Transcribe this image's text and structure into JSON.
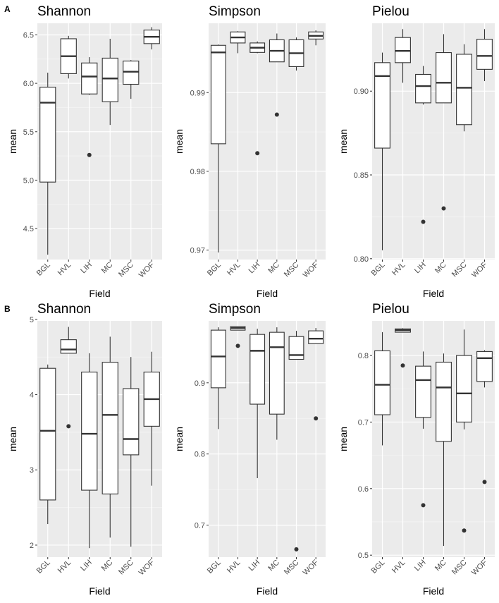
{
  "figure": {
    "panel_labels": [
      "A",
      "B"
    ]
  },
  "chart_data": [
    {
      "type": "boxplot",
      "row": "A",
      "title": "Shannon",
      "xlabel": "Field",
      "ylabel": "mean",
      "categories": [
        "BGL",
        "HVL",
        "LIH",
        "MC",
        "MSC",
        "WOF"
      ],
      "ylim": [
        4.18,
        6.62
      ],
      "yticks": [
        4.5,
        5.0,
        5.5,
        6.0,
        6.5
      ],
      "ytick_labels": [
        "4.5",
        "5.0",
        "5.5",
        "6.0",
        "6.5"
      ],
      "boxes": [
        {
          "min": 4.23,
          "q1": 4.98,
          "median": 5.8,
          "q3": 5.96,
          "max": 6.11,
          "outliers": []
        },
        {
          "min": 6.05,
          "q1": 6.1,
          "median": 6.28,
          "q3": 6.46,
          "max": 6.49,
          "outliers": []
        },
        {
          "min": 5.88,
          "q1": 5.89,
          "median": 6.07,
          "q3": 6.21,
          "max": 6.27,
          "outliers": [
            5.26
          ]
        },
        {
          "min": 5.57,
          "q1": 5.81,
          "median": 6.05,
          "q3": 6.26,
          "max": 6.46,
          "outliers": []
        },
        {
          "min": 5.84,
          "q1": 5.99,
          "median": 6.12,
          "q3": 6.23,
          "max": 6.24,
          "outliers": []
        },
        {
          "min": 6.35,
          "q1": 6.41,
          "median": 6.48,
          "q3": 6.55,
          "max": 6.58,
          "outliers": []
        }
      ]
    },
    {
      "type": "boxplot",
      "row": "A",
      "title": "Simpson",
      "xlabel": "Field",
      "ylabel": "mean",
      "categories": [
        "BGL",
        "HVL",
        "LIH",
        "MC",
        "MSC",
        "WOF"
      ],
      "ylim": [
        0.9688,
        0.9988
      ],
      "yticks": [
        0.97,
        0.98,
        0.99
      ],
      "ytick_labels": [
        "0.97",
        "0.98",
        "0.99"
      ],
      "boxes": [
        {
          "min": 0.9697,
          "q1": 0.9835,
          "median": 0.9951,
          "q3": 0.996,
          "max": 0.9961,
          "outliers": []
        },
        {
          "min": 0.995,
          "q1": 0.9963,
          "median": 0.997,
          "q3": 0.9977,
          "max": 0.9978,
          "outliers": []
        },
        {
          "min": 0.995,
          "q1": 0.9951,
          "median": 0.9957,
          "q3": 0.9963,
          "max": 0.9965,
          "outliers": [
            0.9823
          ]
        },
        {
          "min": 0.9939,
          "q1": 0.9939,
          "median": 0.9953,
          "q3": 0.9967,
          "max": 0.9975,
          "outliers": [
            0.9872
          ]
        },
        {
          "min": 0.9928,
          "q1": 0.9933,
          "median": 0.995,
          "q3": 0.9967,
          "max": 0.997,
          "outliers": []
        },
        {
          "min": 0.996,
          "q1": 0.9968,
          "median": 0.9972,
          "q3": 0.9977,
          "max": 0.9979,
          "outliers": []
        }
      ]
    },
    {
      "type": "boxplot",
      "row": "A",
      "title": "Pielou",
      "xlabel": "Field",
      "ylabel": "mean",
      "categories": [
        "BGL",
        "HVL",
        "LIH",
        "MC",
        "MSC",
        "WOF"
      ],
      "ylim": [
        0.7995,
        0.9405
      ],
      "yticks": [
        0.8,
        0.85,
        0.9
      ],
      "ytick_labels": [
        "0.80",
        "0.85",
        "0.90"
      ],
      "boxes": [
        {
          "min": 0.805,
          "q1": 0.866,
          "median": 0.909,
          "q3": 0.917,
          "max": 0.923,
          "outliers": []
        },
        {
          "min": 0.905,
          "q1": 0.917,
          "median": 0.924,
          "q3": 0.932,
          "max": 0.937,
          "outliers": []
        },
        {
          "min": 0.892,
          "q1": 0.893,
          "median": 0.903,
          "q3": 0.91,
          "max": 0.915,
          "outliers": [
            0.822
          ]
        },
        {
          "min": 0.893,
          "q1": 0.893,
          "median": 0.905,
          "q3": 0.923,
          "max": 0.934,
          "outliers": [
            0.83
          ]
        },
        {
          "min": 0.876,
          "q1": 0.88,
          "median": 0.902,
          "q3": 0.922,
          "max": 0.928,
          "outliers": []
        },
        {
          "min": 0.906,
          "q1": 0.913,
          "median": 0.921,
          "q3": 0.931,
          "max": 0.937,
          "outliers": []
        }
      ]
    },
    {
      "type": "boxplot",
      "row": "B",
      "title": "Shannon",
      "xlabel": "Field",
      "ylabel": "mean",
      "categories": [
        "BGL",
        "HVL",
        "LIH",
        "MC",
        "MSC",
        "WOF"
      ],
      "ylim": [
        1.84,
        4.98
      ],
      "yticks": [
        2,
        3,
        4,
        5
      ],
      "ytick_labels": [
        "2",
        "3",
        "4",
        "5"
      ],
      "boxes": [
        {
          "min": 2.28,
          "q1": 2.6,
          "median": 3.52,
          "q3": 4.35,
          "max": 4.4,
          "outliers": []
        },
        {
          "min": 4.55,
          "q1": 4.55,
          "median": 4.6,
          "q3": 4.73,
          "max": 4.9,
          "outliers": [
            3.58
          ]
        },
        {
          "min": 1.96,
          "q1": 2.73,
          "median": 3.48,
          "q3": 4.3,
          "max": 4.55,
          "outliers": []
        },
        {
          "min": 2.1,
          "q1": 2.68,
          "median": 3.73,
          "q3": 4.43,
          "max": 4.77,
          "outliers": []
        },
        {
          "min": 1.98,
          "q1": 3.2,
          "median": 3.41,
          "q3": 4.08,
          "max": 4.5,
          "outliers": []
        },
        {
          "min": 2.79,
          "q1": 3.58,
          "median": 3.94,
          "q3": 4.3,
          "max": 4.57,
          "outliers": []
        }
      ]
    },
    {
      "type": "boxplot",
      "row": "B",
      "title": "Simpson",
      "xlabel": "Field",
      "ylabel": "mean",
      "categories": [
        "BGL",
        "HVL",
        "LIH",
        "MC",
        "MSC",
        "WOF"
      ],
      "ylim": [
        0.655,
        0.987
      ],
      "yticks": [
        0.7,
        0.8,
        0.9
      ],
      "ytick_labels": [
        "0.7",
        "0.8",
        "0.9"
      ],
      "boxes": [
        {
          "min": 0.835,
          "q1": 0.893,
          "median": 0.937,
          "q3": 0.974,
          "max": 0.978,
          "outliers": []
        },
        {
          "min": 0.974,
          "q1": 0.974,
          "median": 0.977,
          "q3": 0.979,
          "max": 0.979,
          "outliers": [
            0.952
          ]
        },
        {
          "min": 0.766,
          "q1": 0.87,
          "median": 0.945,
          "q3": 0.968,
          "max": 0.976,
          "outliers": []
        },
        {
          "min": 0.82,
          "q1": 0.856,
          "median": 0.95,
          "q3": 0.971,
          "max": 0.978,
          "outliers": []
        },
        {
          "min": 0.933,
          "q1": 0.933,
          "median": 0.939,
          "q3": 0.965,
          "max": 0.973,
          "outliers": [
            0.666
          ]
        },
        {
          "min": 0.955,
          "q1": 0.955,
          "median": 0.962,
          "q3": 0.973,
          "max": 0.977,
          "outliers": [
            0.85
          ]
        }
      ]
    },
    {
      "type": "boxplot",
      "row": "B",
      "title": "Pielou",
      "xlabel": "Field",
      "ylabel": "mean",
      "categories": [
        "BGL",
        "HVL",
        "LIH",
        "MC",
        "MSC",
        "WOF"
      ],
      "ylim": [
        0.497,
        0.852
      ],
      "yticks": [
        0.5,
        0.6,
        0.7,
        0.8
      ],
      "ytick_labels": [
        "0.5",
        "0.6",
        "0.7",
        "0.8"
      ],
      "boxes": [
        {
          "min": 0.665,
          "q1": 0.711,
          "median": 0.756,
          "q3": 0.807,
          "max": 0.835,
          "outliers": []
        },
        {
          "min": 0.835,
          "q1": 0.835,
          "median": 0.838,
          "q3": 0.84,
          "max": 0.841,
          "outliers": [
            0.785
          ]
        },
        {
          "min": 0.69,
          "q1": 0.707,
          "median": 0.763,
          "q3": 0.784,
          "max": 0.806,
          "outliers": [
            0.575
          ]
        },
        {
          "min": 0.514,
          "q1": 0.671,
          "median": 0.752,
          "q3": 0.79,
          "max": 0.803,
          "outliers": []
        },
        {
          "min": 0.689,
          "q1": 0.7,
          "median": 0.743,
          "q3": 0.8,
          "max": 0.839,
          "outliers": [
            0.537
          ]
        },
        {
          "min": 0.752,
          "q1": 0.761,
          "median": 0.796,
          "q3": 0.806,
          "max": 0.808,
          "outliers": [
            0.61
          ]
        }
      ]
    }
  ]
}
